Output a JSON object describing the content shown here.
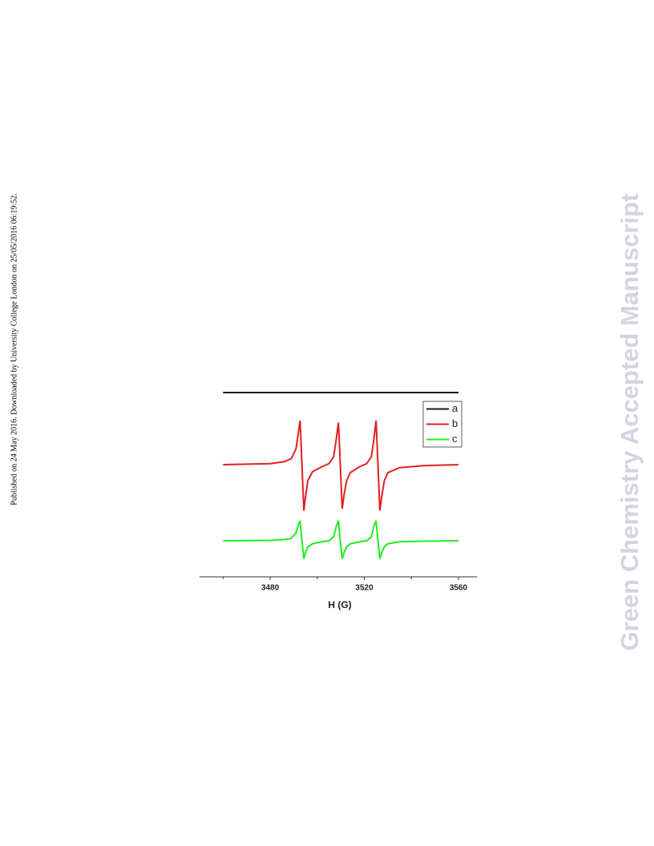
{
  "side_note": "Published on 24 May 2016. Downloaded by University College London on 25/05/2016 06:19:52.",
  "watermark": "Green Chemistry Accepted Manuscript",
  "chart_data": {
    "type": "line",
    "xlabel": "H (G)",
    "xlim": [
      3450,
      3568
    ],
    "xticks": [
      3480,
      3520,
      3560
    ],
    "xminor": [
      3460,
      3500,
      3540
    ],
    "ylim": [
      0,
      100
    ],
    "legend": "upper right",
    "x": [
      3460,
      3480,
      3486,
      3489,
      3491,
      3492,
      3492.7,
      3493.5,
      3494.3,
      3495,
      3496,
      3498,
      3502,
      3505,
      3507,
      3508,
      3509,
      3509.8,
      3510.6,
      3511.4,
      3512.5,
      3514,
      3518,
      3521,
      3523,
      3524,
      3525,
      3525.8,
      3526.6,
      3527.4,
      3528.5,
      3530,
      3535,
      3545,
      3560
    ],
    "series": [
      {
        "name": "a",
        "color": "#1a1a1a",
        "values": [
          92,
          92,
          92,
          92,
          92,
          92,
          92,
          92,
          92,
          92,
          92,
          92,
          92,
          92,
          92,
          92,
          92,
          92,
          92,
          92,
          92,
          92,
          92,
          92,
          92,
          92,
          92,
          92,
          92,
          92,
          92,
          92,
          92,
          92,
          92
        ]
      },
      {
        "name": "b",
        "color": "#e02020",
        "values": [
          56,
          56.5,
          57.5,
          59,
          64,
          72,
          78,
          56,
          33,
          40,
          48,
          52.5,
          55,
          56.5,
          60,
          68,
          77,
          56,
          34,
          41,
          48,
          52,
          55,
          56.5,
          60,
          68,
          78,
          56,
          33,
          40,
          48,
          52,
          54.5,
          55.5,
          56
        ]
      },
      {
        "name": "c",
        "color": "#22ee22",
        "values": [
          18,
          18.2,
          18.6,
          19.2,
          22,
          26,
          28,
          18,
          9,
          12,
          15,
          16.5,
          17.5,
          18,
          20,
          25,
          28,
          18,
          9,
          12,
          15,
          16.5,
          17.5,
          18,
          20,
          25,
          28,
          18,
          9,
          12,
          15,
          16.5,
          17.5,
          17.8,
          18
        ]
      }
    ]
  }
}
